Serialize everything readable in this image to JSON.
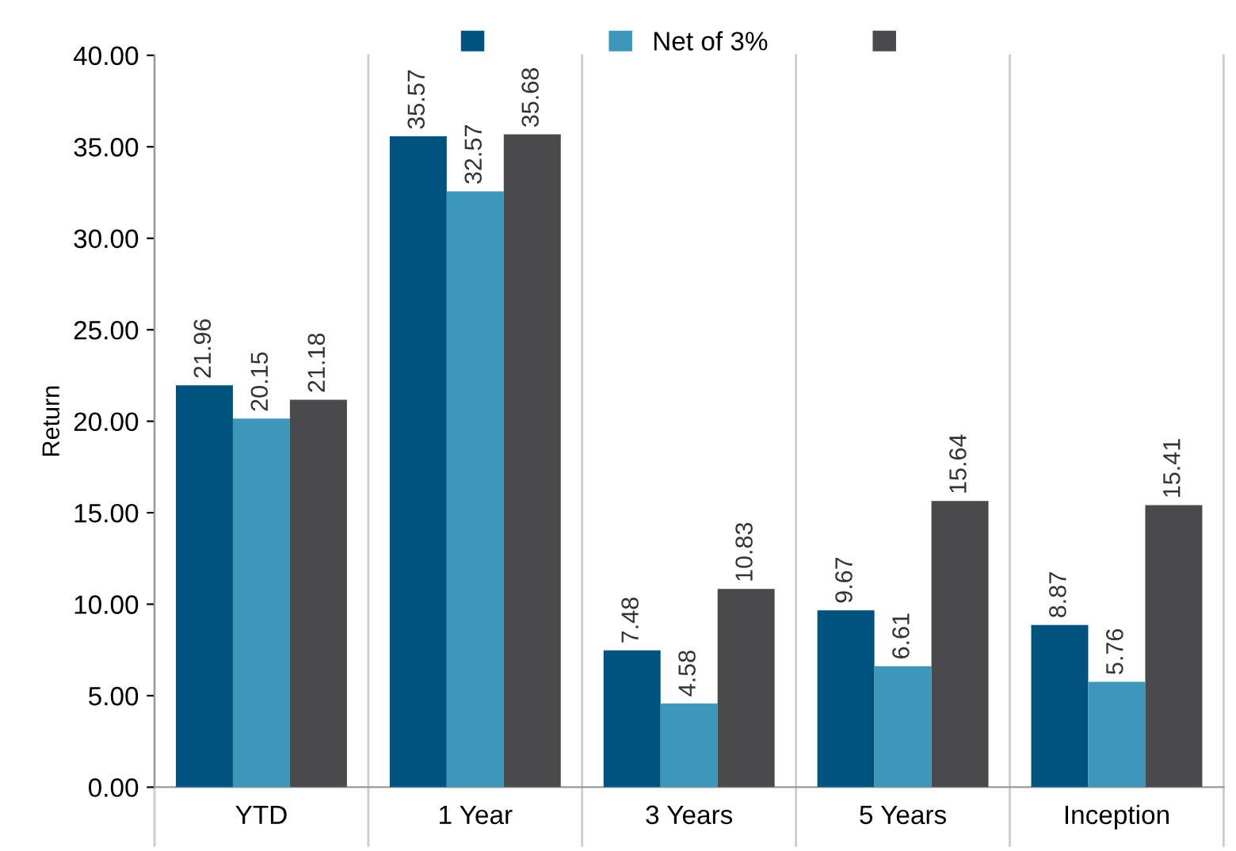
{
  "chart_data": {
    "type": "bar",
    "ylabel": "Return",
    "categories": [
      "YTD",
      "1 Year",
      "3 Years",
      "5 Years",
      "Inception"
    ],
    "series": [
      {
        "color": "#00537f",
        "values": [
          21.96,
          35.57,
          7.48,
          9.67,
          8.87
        ]
      },
      {
        "name": "Net of 3%",
        "color": "#3d97bb",
        "values": [
          20.15,
          32.57,
          4.58,
          6.61,
          5.76
        ]
      },
      {
        "color": "#4a4a4c",
        "values": [
          21.18,
          35.68,
          10.83,
          15.64,
          15.41
        ]
      }
    ],
    "ylim": [
      0,
      40
    ],
    "yticks": [
      {
        "value": 0,
        "label": "0.00"
      },
      {
        "value": 5,
        "label": "5.00"
      },
      {
        "value": 10,
        "label": "10.00"
      },
      {
        "value": 15,
        "label": "15.00"
      },
      {
        "value": 20,
        "label": "20.00"
      },
      {
        "value": 25,
        "label": "25.00"
      },
      {
        "value": 30,
        "label": "30.00"
      },
      {
        "value": 35,
        "label": "35.00"
      },
      {
        "value": 40,
        "label": "40.00"
      }
    ],
    "grid": "x",
    "legend": "top",
    "data_labels": true
  }
}
